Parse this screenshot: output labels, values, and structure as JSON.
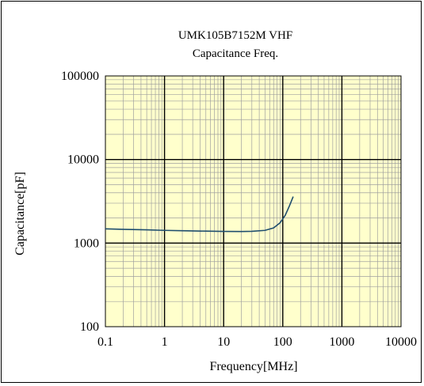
{
  "chart_data": {
    "type": "line",
    "title": "UMK105B7152M VHF",
    "subtitle": "Capacitance Freq.",
    "xlabel": "Frequency[MHz]",
    "ylabel": "Capacitance[pF]",
    "xscale": "log",
    "yscale": "log",
    "xlim": [
      0.1,
      10000
    ],
    "ylim": [
      100,
      100000
    ],
    "x_ticks": [
      "0.1",
      "1",
      "10",
      "100",
      "1000",
      "10000"
    ],
    "y_ticks": [
      "100",
      "1000",
      "10000",
      "100000"
    ],
    "grid": true,
    "legend": "none",
    "colors": {
      "plot_bg": "#FFFFCC",
      "minor_grid": "#A0A0A0",
      "major_grid": "#000000",
      "line": "#1F4E6E"
    },
    "series": [
      {
        "x": [
          0.1,
          0.2,
          0.5,
          1,
          2,
          5,
          10,
          20,
          30,
          50,
          70,
          90,
          110,
          130,
          150
        ],
        "y": [
          1480,
          1460,
          1440,
          1420,
          1405,
          1390,
          1380,
          1375,
          1385,
          1420,
          1520,
          1750,
          2150,
          2800,
          3600
        ]
      }
    ]
  }
}
